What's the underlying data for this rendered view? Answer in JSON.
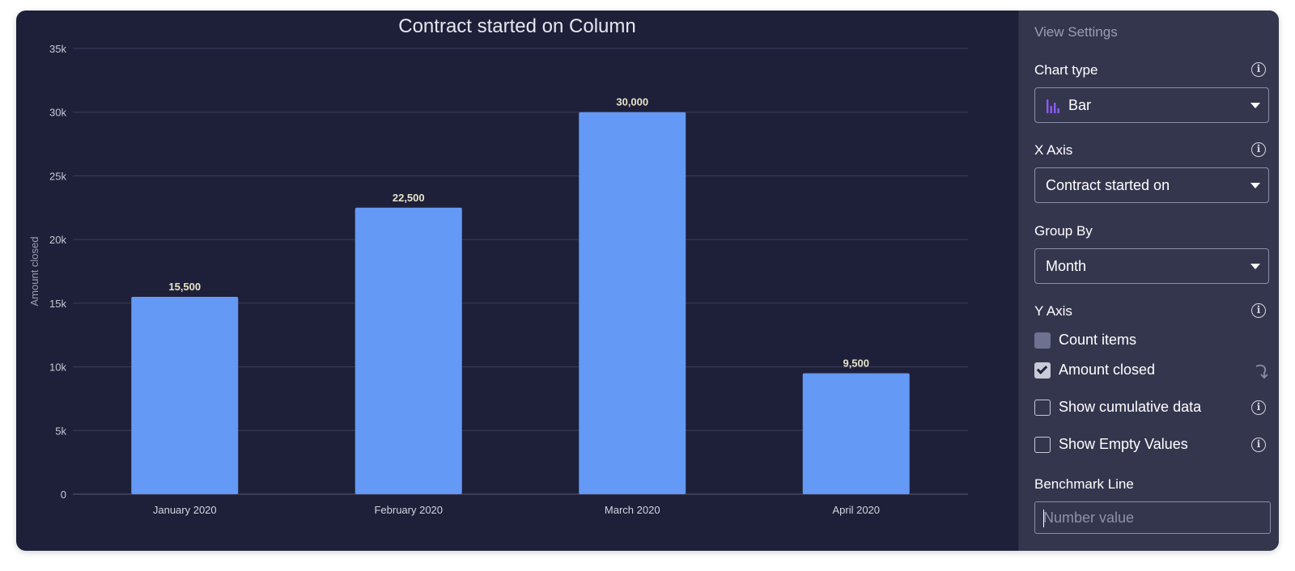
{
  "chart_data": {
    "type": "bar",
    "title": "Contract started on Column",
    "xlabel": "",
    "ylabel": "Amount closed",
    "categories": [
      "January 2020",
      "February 2020",
      "March 2020",
      "April 2020"
    ],
    "values": [
      15500,
      22500,
      30000,
      9500
    ],
    "value_labels": [
      "15,500",
      "22,500",
      "30,000",
      "9,500"
    ],
    "yticks": [
      "0",
      "5k",
      "10k",
      "15k",
      "20k",
      "25k",
      "30k",
      "35k"
    ],
    "ylim": [
      0,
      35000
    ],
    "grid": true,
    "bar_color": "#6499f5"
  },
  "panel": {
    "title": "View Settings",
    "chart_type": {
      "label": "Chart type",
      "value": "Bar",
      "icon": "bar-chart-icon"
    },
    "x_axis": {
      "label": "X Axis",
      "value": "Contract started on"
    },
    "group_by": {
      "label": "Group By",
      "value": "Month"
    },
    "y_axis": {
      "label": "Y Axis",
      "count_items": "Count items",
      "amount_closed": "Amount closed"
    },
    "show_cumulative": "Show cumulative data",
    "show_empty": "Show Empty Values",
    "benchmark": {
      "label": "Benchmark Line",
      "placeholder": "Number value"
    }
  },
  "colors": {
    "background": "#1e2039",
    "panel": "#34364e",
    "bar": "#6499f5",
    "accent_icon": "#8b5cf6"
  }
}
